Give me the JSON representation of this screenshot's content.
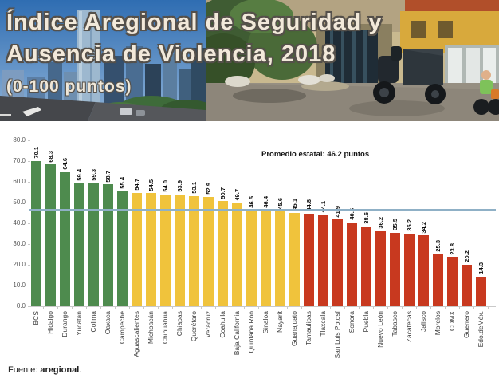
{
  "header": {
    "title_line1": "Índice Aregional de Seguridad y",
    "title_line2": "Ausencia de Violencia, 2018",
    "subtitle": "(0-100 puntos)"
  },
  "chart_data": {
    "type": "bar",
    "title": "Índice Aregional de Seguridad y Ausencia de Violencia, 2018 (0-100 puntos)",
    "xlabel": "",
    "ylabel": "",
    "ylim": [
      0,
      80
    ],
    "yticks": [
      "80.0",
      "70.0",
      "60.0",
      "50.0",
      "40.0",
      "30.0",
      "20.0",
      "10.0",
      "0.0"
    ],
    "grid": false,
    "categories": [
      "BCS",
      "Hidalgo",
      "Durango",
      "Yucatán",
      "Colima",
      "Oaxaca",
      "Campeche",
      "Aguascalientes",
      "Michoacán",
      "Chihuahua",
      "Chiapas",
      "Querétaro",
      "Veracruz",
      "Coahuila",
      "Baja California",
      "Quintana Roo",
      "Sinaloa",
      "Nayarit",
      "Guanajuato",
      "Tamaulipas",
      "Tlaxcala",
      "San Luis Potosí",
      "Sonora",
      "Puebla",
      "Nuevo León",
      "Tabasco",
      "Zacatecas",
      "Jalisco",
      "Morelos",
      "CDMX",
      "Guerrero",
      "Edo.deMéx."
    ],
    "values": [
      70.1,
      68.3,
      64.6,
      59.4,
      59.3,
      58.7,
      55.4,
      54.7,
      54.5,
      54.0,
      53.9,
      53.1,
      52.9,
      50.7,
      49.7,
      46.5,
      46.4,
      45.6,
      45.1,
      44.8,
      44.1,
      41.9,
      40.5,
      38.6,
      36.2,
      35.5,
      35.2,
      34.2,
      25.3,
      23.8,
      20.2,
      14.3
    ],
    "bar_groups": [
      "green",
      "green",
      "green",
      "green",
      "green",
      "green",
      "green",
      "yellow",
      "yellow",
      "yellow",
      "yellow",
      "yellow",
      "yellow",
      "yellow",
      "yellow",
      "yellow",
      "yellow",
      "yellow",
      "yellow",
      "red",
      "red",
      "red",
      "red",
      "red",
      "red",
      "red",
      "red",
      "red",
      "red",
      "red",
      "red",
      "red"
    ],
    "group_colors": {
      "green": "#4e8b4e",
      "yellow": "#f0c33c",
      "red": "#c8391f"
    },
    "average_line": {
      "value": 46.2,
      "label": "Promedio estatal: 46.2 puntos",
      "color": "#8fb0c6"
    },
    "legend": null
  },
  "footer": {
    "source_prefix": "Fuente: ",
    "source_bold": "aregional",
    "source_suffix": "."
  }
}
